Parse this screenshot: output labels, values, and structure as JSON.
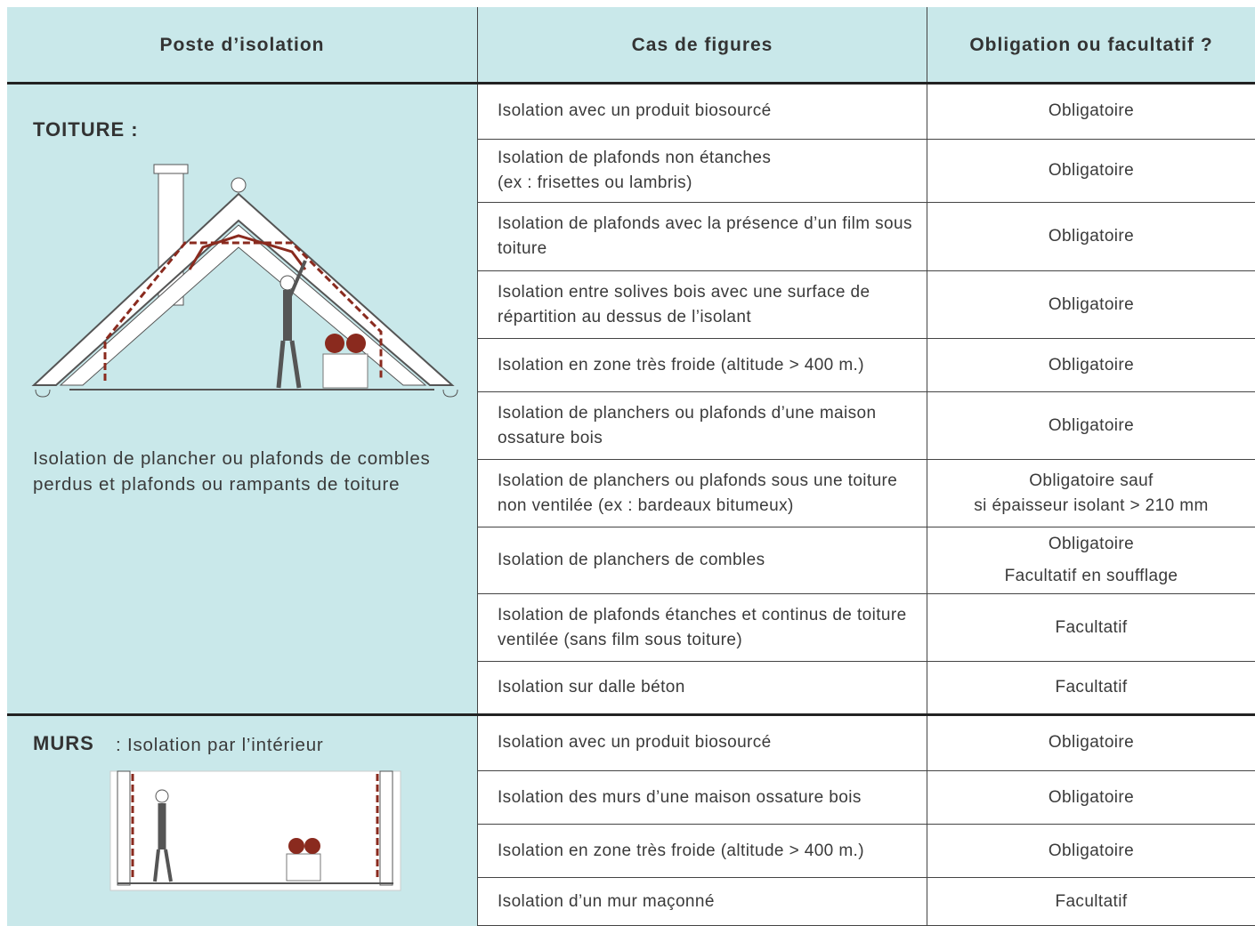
{
  "header": {
    "columns": [
      "Poste d’isolation",
      "Cas de figures",
      "Obligation ou facultatif ?"
    ]
  },
  "sections": [
    {
      "label": "TOITURE :",
      "caption": "Isolation de plancher ou plafonds de combles perdus et plafonds ou rampants de toiture",
      "rows": [
        {
          "case": [
            "Isolation avec un produit biosourcé"
          ],
          "obligation": [
            "Obligatoire"
          ]
        },
        {
          "case": [
            "Isolation de plafonds non étanches",
            "(ex : frisettes ou lambris)"
          ],
          "obligation": [
            "Obligatoire"
          ]
        },
        {
          "case": [
            "Isolation de plafonds avec la présence d’un film sous toiture"
          ],
          "obligation": [
            "Obligatoire"
          ]
        },
        {
          "case": [
            "Isolation entre solives bois avec une surface de répartition au dessus de l’isolant"
          ],
          "obligation": [
            "Obligatoire"
          ]
        },
        {
          "case": [
            "Isolation en zone très froide (altitude > 400 m.)"
          ],
          "obligation": [
            "Obligatoire"
          ]
        },
        {
          "case": [
            "Isolation de planchers ou plafonds d’une maison ossature bois"
          ],
          "obligation": [
            "Obligatoire"
          ]
        },
        {
          "case": [
            "Isolation de planchers ou plafonds sous une toiture non ventilée (ex : bardeaux bitumeux)"
          ],
          "obligation": [
            "Obligatoire sauf",
            "si épaisseur isolant > 210 mm"
          ]
        },
        {
          "case": [
            "Isolation de planchers de combles"
          ],
          "obligation": [
            "Obligatoire",
            "Facultatif en soufflage"
          ]
        },
        {
          "case": [
            "Isolation de plafonds étanches et continus de toiture ventilée (sans film sous toiture)"
          ],
          "obligation": [
            "Facultatif"
          ]
        },
        {
          "case": [
            "Isolation sur dalle béton"
          ],
          "obligation": [
            "Facultatif"
          ]
        }
      ]
    },
    {
      "label": "MURS",
      "caption": ": Isolation par l’intérieur",
      "rows": [
        {
          "case": [
            "Isolation avec un produit biosourcé"
          ],
          "obligation": [
            "Obligatoire"
          ]
        },
        {
          "case": [
            "Isolation des murs d’une maison ossature bois"
          ],
          "obligation": [
            "Obligatoire"
          ]
        },
        {
          "case": [
            "Isolation en zone très froide (altitude > 400 m.)"
          ],
          "obligation": [
            "Obligatoire"
          ]
        },
        {
          "case": [
            "Isolation d’un mur maçonné"
          ],
          "obligation": [
            "Facultatif"
          ]
        }
      ]
    }
  ]
}
